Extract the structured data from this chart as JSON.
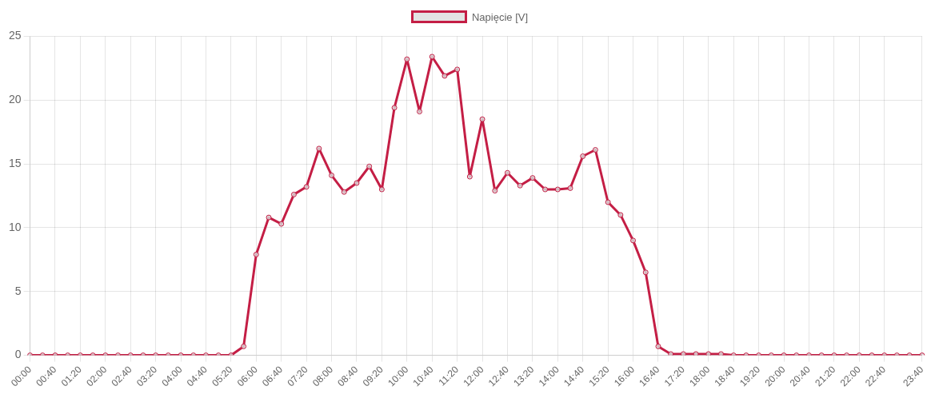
{
  "chart_data": {
    "type": "line",
    "categories": [
      "00:00",
      null,
      "00:40",
      null,
      "01:20",
      null,
      "02:00",
      null,
      "02:40",
      null,
      "03:20",
      null,
      "04:00",
      null,
      "04:40",
      null,
      "05:20",
      null,
      "06:00",
      null,
      "06:40",
      null,
      "07:20",
      null,
      "08:00",
      null,
      "08:40",
      null,
      "09:20",
      null,
      "10:00",
      null,
      "10:40",
      null,
      "11:20",
      null,
      "12:00",
      null,
      "12:40",
      null,
      "13:20",
      null,
      "14:00",
      null,
      "14:40",
      null,
      "15:20",
      null,
      "16:00",
      null,
      "16:40",
      null,
      "17:20",
      null,
      "18:00",
      null,
      "18:40",
      null,
      "19:20",
      null,
      "20:00",
      null,
      "20:40",
      null,
      "21:20",
      null,
      "22:00",
      null,
      "22:40",
      null,
      null,
      "23:40"
    ],
    "series": [
      {
        "name": "Napięcie [V]",
        "color": "#c41e45",
        "values": [
          0,
          0,
          0,
          0,
          0,
          0,
          0,
          0,
          0,
          0,
          0,
          0,
          0,
          0,
          0,
          0,
          0,
          0.7,
          7.9,
          10.8,
          10.3,
          12.6,
          13.2,
          16.2,
          14.1,
          12.8,
          13.5,
          14.8,
          13.0,
          19.4,
          23.2,
          19.1,
          23.4,
          21.9,
          22.4,
          14.0,
          18.5,
          12.9,
          14.3,
          13.3,
          13.9,
          13.0,
          13.0,
          13.1,
          15.6,
          16.1,
          12.0,
          11.0,
          9.0,
          6.5,
          0.7,
          0.1,
          0.1,
          0.1,
          0.1,
          0.1,
          0,
          0,
          0,
          0,
          0,
          0,
          0,
          0,
          0,
          0,
          0,
          0,
          0,
          0,
          0,
          0
        ]
      }
    ],
    "ylim": [
      0,
      25
    ],
    "yticks": [
      0,
      5,
      10,
      15,
      20,
      25
    ],
    "grid": true,
    "legend": "top",
    "marker": "circle",
    "line_style": "solid"
  }
}
